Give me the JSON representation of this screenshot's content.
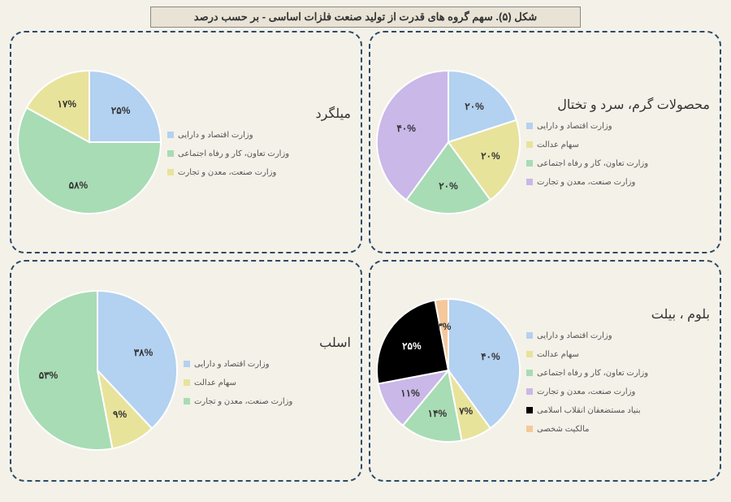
{
  "title": "شکل (۵). سهم گروه های قدرت از تولید صنعت فلزات اساسی - بر حسب درصد",
  "charts": [
    {
      "title": "محصولات گرم، سرد و تختال",
      "r": 88,
      "slices": [
        {
          "label": "وزارت اقتصاد و دارایی",
          "pct": 20,
          "color": "#b3d1f0",
          "txt": "۲۰%"
        },
        {
          "label": "سهام عدالت",
          "pct": 20,
          "color": "#e8e39b",
          "txt": "۲۰%"
        },
        {
          "label": "وزارت تعاون، کار و رفاه اجتماعی",
          "pct": 20,
          "color": "#a8dcb4",
          "txt": "۲۰%"
        },
        {
          "label": "وزارت صنعت، معدن و تجارت",
          "pct": 40,
          "color": "#c9b8e8",
          "txt": "۴۰%"
        }
      ]
    },
    {
      "title": "میلگرد",
      "r": 88,
      "slices": [
        {
          "label": "وزارت اقتصاد و دارایی",
          "pct": 25,
          "color": "#b3d1f0",
          "txt": "۲۵%"
        },
        {
          "label": "وزارت تعاون، کار و رفاه اجتماعی",
          "pct": 58,
          "color": "#a8dcb4",
          "txt": "۵۸%"
        },
        {
          "label": "وزارت صنعت، معدن و تجارت",
          "pct": 17,
          "color": "#e8e39b",
          "txt": "۱۷%"
        }
      ]
    },
    {
      "title": "بلوم ، بیلت",
      "r": 88,
      "slices": [
        {
          "label": "وزارت اقتصاد و دارایی",
          "pct": 40,
          "color": "#b3d1f0",
          "txt": "۴۰%"
        },
        {
          "label": "سهام عدالت",
          "pct": 7,
          "color": "#e8e39b",
          "txt": "۷%"
        },
        {
          "label": "وزارت تعاون، کار و رفاه اجتماعی",
          "pct": 14,
          "color": "#a8dcb4",
          "txt": "۱۴%"
        },
        {
          "label": "وزارت صنعت، معدن و تجارت",
          "pct": 11,
          "color": "#c9b8e8",
          "txt": "۱۱%"
        },
        {
          "label": "بنیاد مستضعفان انقلاب اسلامی",
          "pct": 25,
          "color": "#000000",
          "txt": "۲۵%",
          "txtColor": "#fff"
        },
        {
          "label": "مالکیت شخصی",
          "pct": 3,
          "color": "#f5c89b",
          "txt": "۳%"
        }
      ]
    },
    {
      "title": "اسلب",
      "r": 98,
      "slices": [
        {
          "label": "وزارت اقتصاد و دارایی",
          "pct": 38,
          "color": "#b3d1f0",
          "txt": "۳۸%"
        },
        {
          "label": "سهام عدالت",
          "pct": 9,
          "color": "#e8e39b",
          "txt": "۹%"
        },
        {
          "label": "وزارت صنعت، معدن و تجارت",
          "pct": 53,
          "color": "#a8dcb4",
          "txt": "۵۳%"
        }
      ]
    }
  ]
}
